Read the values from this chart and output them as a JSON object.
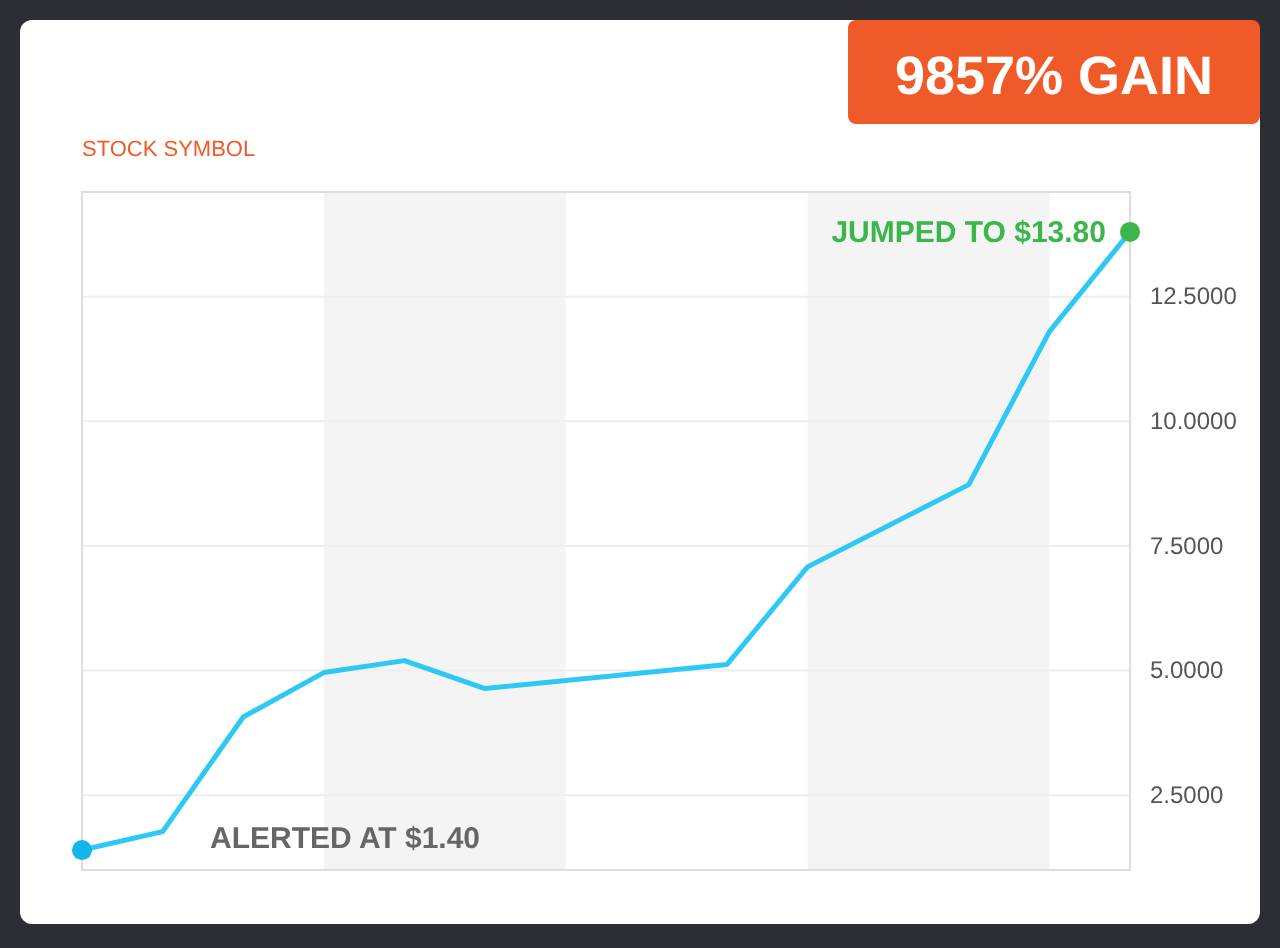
{
  "chart_data": {
    "type": "line",
    "subtitle": "STOCK SYMBOL",
    "annotations": [
      "9857% GAIN",
      "JUMPED TO $13.80",
      "ALERTED AT $1.40"
    ],
    "categories": [
      null,
      null,
      null,
      null,
      null,
      null,
      null,
      null,
      null,
      null,
      null,
      null,
      null,
      null
    ],
    "series": [
      {
        "color": "#2ec8f4",
        "values": [
          1.4,
          1.77,
          4.07,
          4.96,
          5.2,
          4.64,
          null,
          null,
          5.12,
          7.08,
          null,
          8.73,
          11.8,
          13.8
        ]
      }
    ],
    "ylim": [
      1,
      14.6
    ],
    "yticks": [
      {
        "value": 2.5,
        "label": "2.5000"
      },
      {
        "value": 5,
        "label": "5.0000"
      },
      {
        "value": 7.5,
        "label": "7.5000"
      },
      {
        "value": 10,
        "label": "10.0000"
      },
      {
        "value": 12.5,
        "label": "12.5000"
      }
    ],
    "grid": "y",
    "tick_labels": "y",
    "marker": "none"
  }
}
